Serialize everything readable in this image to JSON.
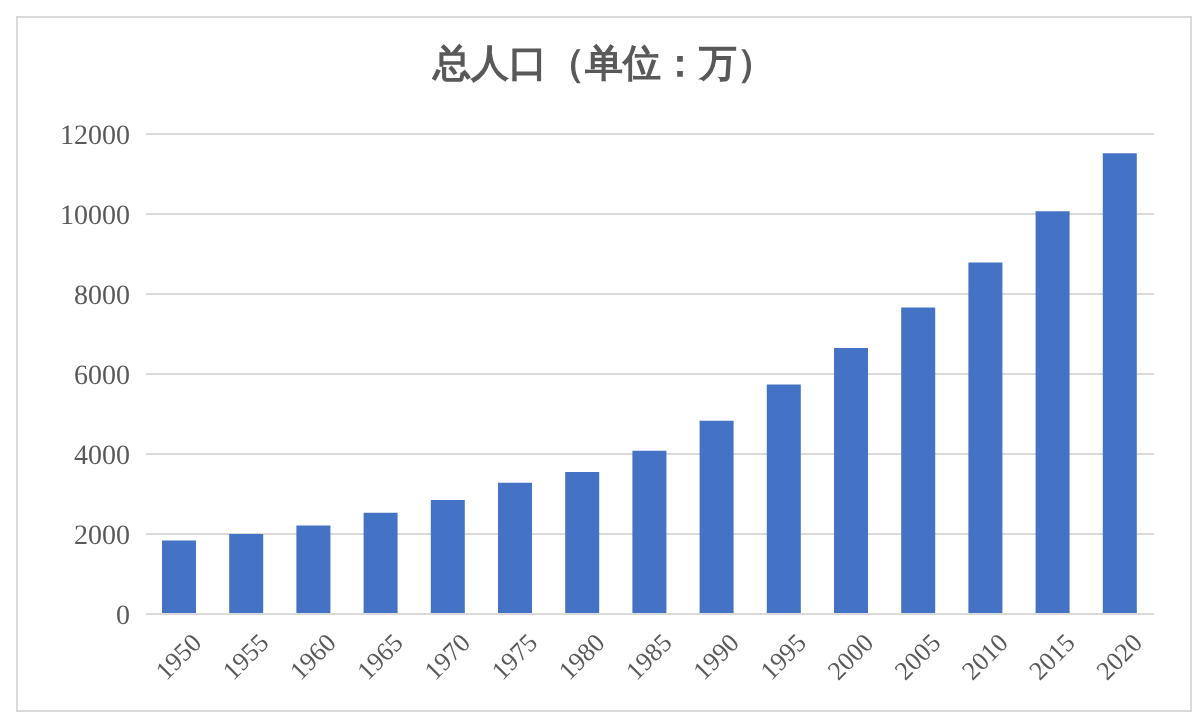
{
  "chart_data": {
    "type": "bar",
    "title": "总人口（单位：万）",
    "categories": [
      "1950",
      "1955",
      "1960",
      "1965",
      "1970",
      "1975",
      "1980",
      "1985",
      "1990",
      "1995",
      "2000",
      "2005",
      "2010",
      "2015",
      "2020"
    ],
    "values": [
      1840,
      2000,
      2210,
      2530,
      2850,
      3280,
      3550,
      4080,
      4830,
      5740,
      6650,
      7660,
      8790,
      10070,
      11520
    ],
    "color": "#4472c4",
    "ylim": [
      0,
      12000
    ],
    "yticks": [
      0,
      2000,
      4000,
      6000,
      8000,
      10000,
      12000
    ],
    "grid": "y"
  }
}
